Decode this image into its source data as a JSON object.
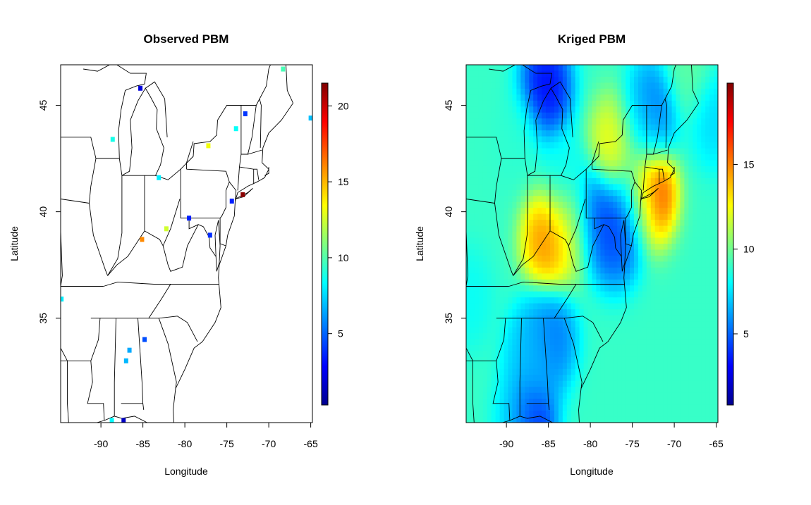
{
  "chart_data": [
    {
      "type": "scatter",
      "title": "Observed PBM",
      "xlabel": "Longitude",
      "ylabel": "Latitude",
      "xlim": [
        -94.8,
        -64.8
      ],
      "ylim": [
        30.1,
        46.9
      ],
      "xticks": [
        -90,
        -85,
        -80,
        -75,
        -70,
        -65
      ],
      "xtick_labels": [
        "-90",
        "-85",
        "-80",
        "-75",
        "-70",
        "-65"
      ],
      "yticks": [
        35,
        40,
        45
      ],
      "ytick_labels": [
        "35",
        "40",
        "45"
      ],
      "colorbar": {
        "min": 0.3,
        "max": 21.5,
        "ticks": [
          5,
          10,
          15,
          20
        ],
        "tick_labels": [
          "5",
          "10",
          "15",
          "20"
        ],
        "palette": [
          "#00008f",
          "#0000ff",
          "#00ffff",
          "#ffff00",
          "#ff0000",
          "#800000"
        ]
      },
      "points": [
        {
          "lon": -68.3,
          "lat": 46.7,
          "value": 9.8
        },
        {
          "lon": -65.0,
          "lat": 44.4,
          "value": 7.0
        },
        {
          "lon": -72.8,
          "lat": 44.6,
          "value": 4.0
        },
        {
          "lon": -73.9,
          "lat": 43.9,
          "value": 8.5
        },
        {
          "lon": -77.2,
          "lat": 43.1,
          "value": 13.2
        },
        {
          "lon": -85.3,
          "lat": 45.8,
          "value": 2.0
        },
        {
          "lon": -88.6,
          "lat": 43.4,
          "value": 8.8
        },
        {
          "lon": -83.1,
          "lat": 41.6,
          "value": 8.0
        },
        {
          "lon": -73.1,
          "lat": 40.8,
          "value": 21.3
        },
        {
          "lon": -74.4,
          "lat": 40.5,
          "value": 3.5
        },
        {
          "lon": -79.5,
          "lat": 39.7,
          "value": 3.5
        },
        {
          "lon": -82.2,
          "lat": 39.2,
          "value": 12.5
        },
        {
          "lon": -77.0,
          "lat": 38.9,
          "value": 3.8
        },
        {
          "lon": -85.1,
          "lat": 38.7,
          "value": 16.0
        },
        {
          "lon": -94.7,
          "lat": 35.9,
          "value": 8.0
        },
        {
          "lon": -84.8,
          "lat": 34.0,
          "value": 4.5
        },
        {
          "lon": -86.6,
          "lat": 33.5,
          "value": 6.5
        },
        {
          "lon": -87.0,
          "lat": 33.0,
          "value": 6.8
        },
        {
          "lon": -88.7,
          "lat": 30.2,
          "value": 8.3
        },
        {
          "lon": -87.3,
          "lat": 30.2,
          "value": 1.5
        }
      ]
    },
    {
      "type": "heatmap",
      "title": "Kriged PBM",
      "xlabel": "Longitude",
      "ylabel": "Latitude",
      "xlim": [
        -94.8,
        -64.8
      ],
      "ylim": [
        30.1,
        46.9
      ],
      "xticks": [
        -90,
        -85,
        -80,
        -75,
        -70,
        -65
      ],
      "xtick_labels": [
        "-90",
        "-85",
        "-80",
        "-75",
        "-70",
        "-65"
      ],
      "yticks": [
        35,
        40,
        45
      ],
      "ytick_labels": [
        "35",
        "40",
        "45"
      ],
      "colorbar": {
        "min": 0.8,
        "max": 19.8,
        "ticks": [
          5,
          10,
          15
        ],
        "tick_labels": [
          "5",
          "10",
          "15"
        ],
        "palette": [
          "#00008f",
          "#0000ff",
          "#00ffff",
          "#ffff00",
          "#ff0000",
          "#800000"
        ]
      }
    }
  ]
}
